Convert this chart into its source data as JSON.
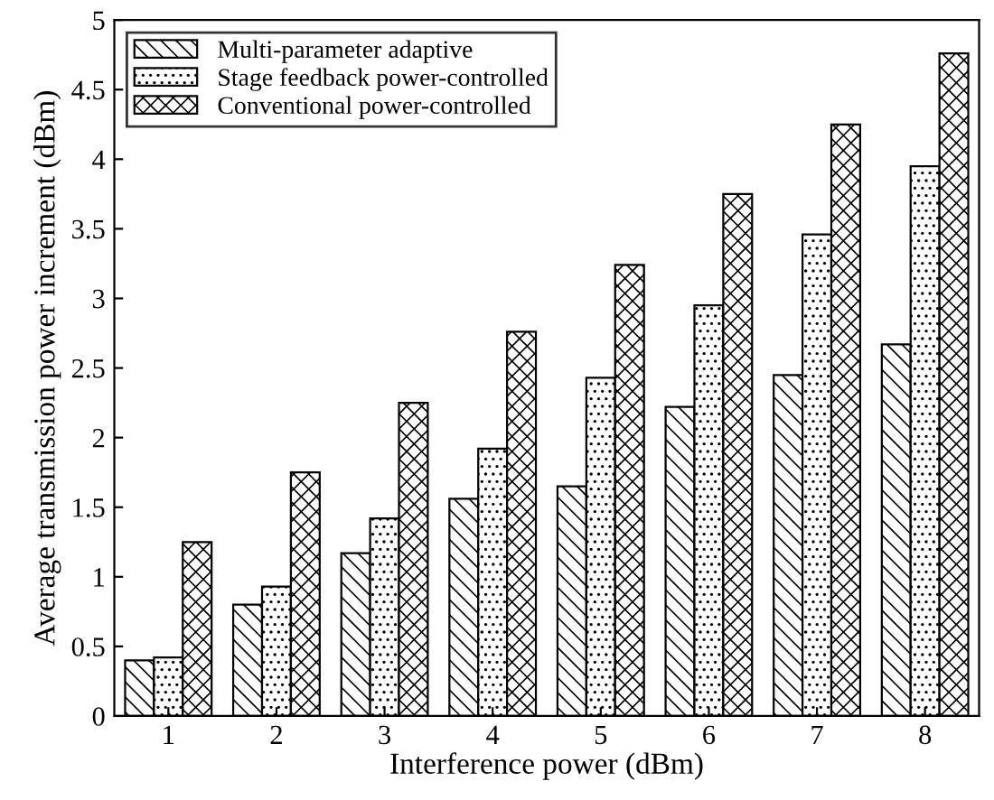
{
  "chart_data": {
    "type": "bar",
    "xlabel": "Interference power (dBm)",
    "ylabel": "Average transmission power increment (dBm)",
    "categories": [
      "1",
      "2",
      "3",
      "4",
      "5",
      "6",
      "7",
      "8"
    ],
    "series": [
      {
        "name": "Multi-parameter adaptive",
        "color": "#000000",
        "values": [
          0.4,
          0.8,
          1.17,
          1.56,
          1.65,
          2.22,
          2.45,
          2.67
        ]
      },
      {
        "name": "Stage feedback power-controlled",
        "color": "#000000",
        "values": [
          0.42,
          0.93,
          1.42,
          1.92,
          2.43,
          2.95,
          3.46,
          3.95
        ]
      },
      {
        "name": "Conventional power-controlled",
        "color": "#000000",
        "values": [
          1.25,
          1.75,
          2.25,
          2.76,
          3.24,
          3.75,
          4.25,
          4.76
        ]
      }
    ],
    "ylim": [
      0,
      5
    ],
    "yticks": [
      0,
      0.5,
      1,
      1.5,
      2,
      2.5,
      3,
      3.5,
      4,
      4.5,
      5
    ],
    "grid": false,
    "legend": "top left"
  }
}
